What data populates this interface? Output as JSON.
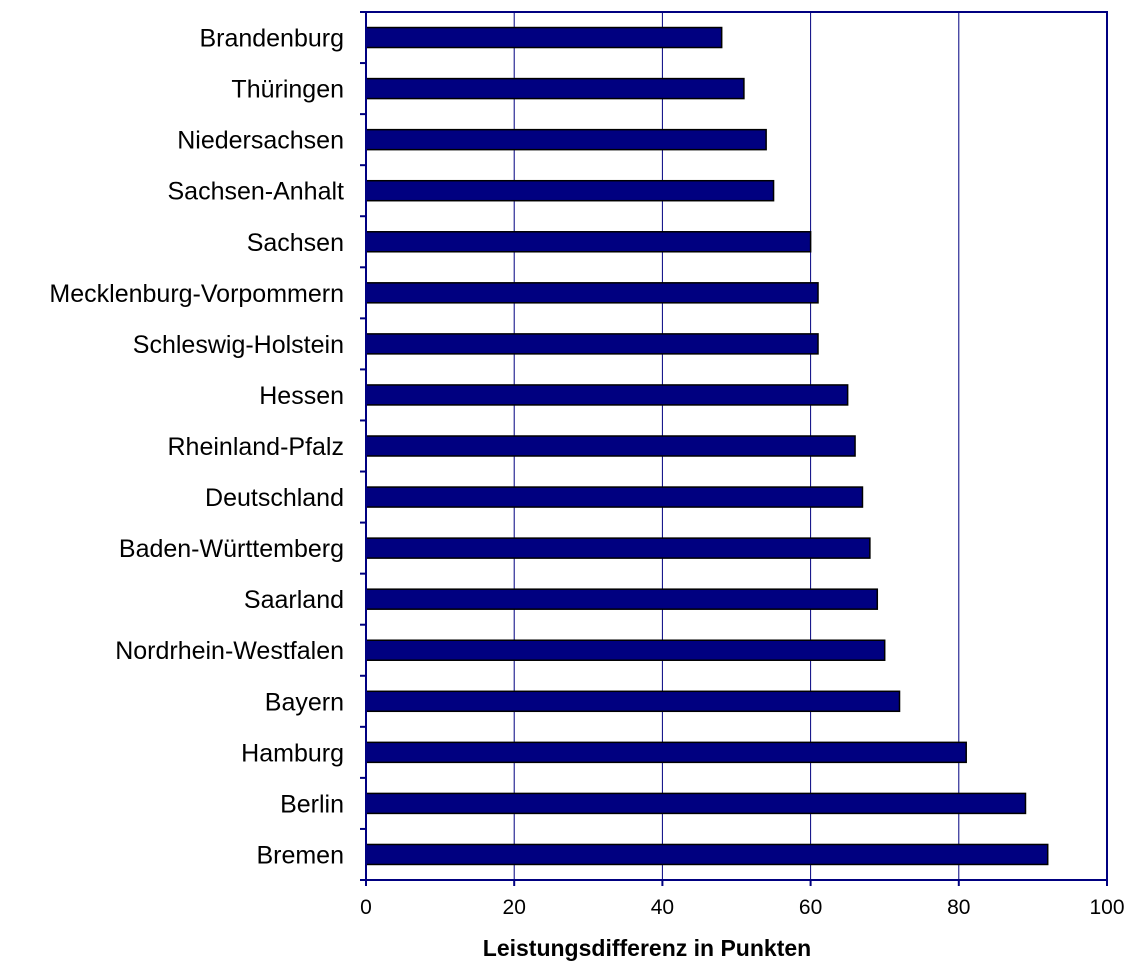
{
  "chart_data": {
    "type": "bar",
    "orientation": "horizontal",
    "title": "",
    "xlabel": "Leistungsdifferenz in Punkten",
    "ylabel": "",
    "xlim": [
      0,
      100
    ],
    "xticks": [
      "0",
      "20",
      "40",
      "60",
      "80",
      "100"
    ],
    "grid": "vertical",
    "legend": "none",
    "categories": [
      "Brandenburg",
      "Thüringen",
      "Niedersachsen",
      "Sachsen-Anhalt",
      "Sachsen",
      "Mecklenburg-Vorpommern",
      "Schleswig-Holstein",
      "Hessen",
      "Rheinland-Pfalz",
      "Deutschland",
      "Baden-Württemberg",
      "Saarland",
      "Nordrhein-Westfalen",
      "Bayern",
      "Hamburg",
      "Berlin",
      "Bremen"
    ],
    "values": [
      48,
      51,
      54,
      55,
      60,
      61,
      61,
      65,
      66,
      67,
      68,
      69,
      70,
      72,
      81,
      89,
      92
    ],
    "colors": {
      "bar": "#000080",
      "bar_border": "#000000",
      "axis": "#000080",
      "grid": "#000080"
    }
  }
}
